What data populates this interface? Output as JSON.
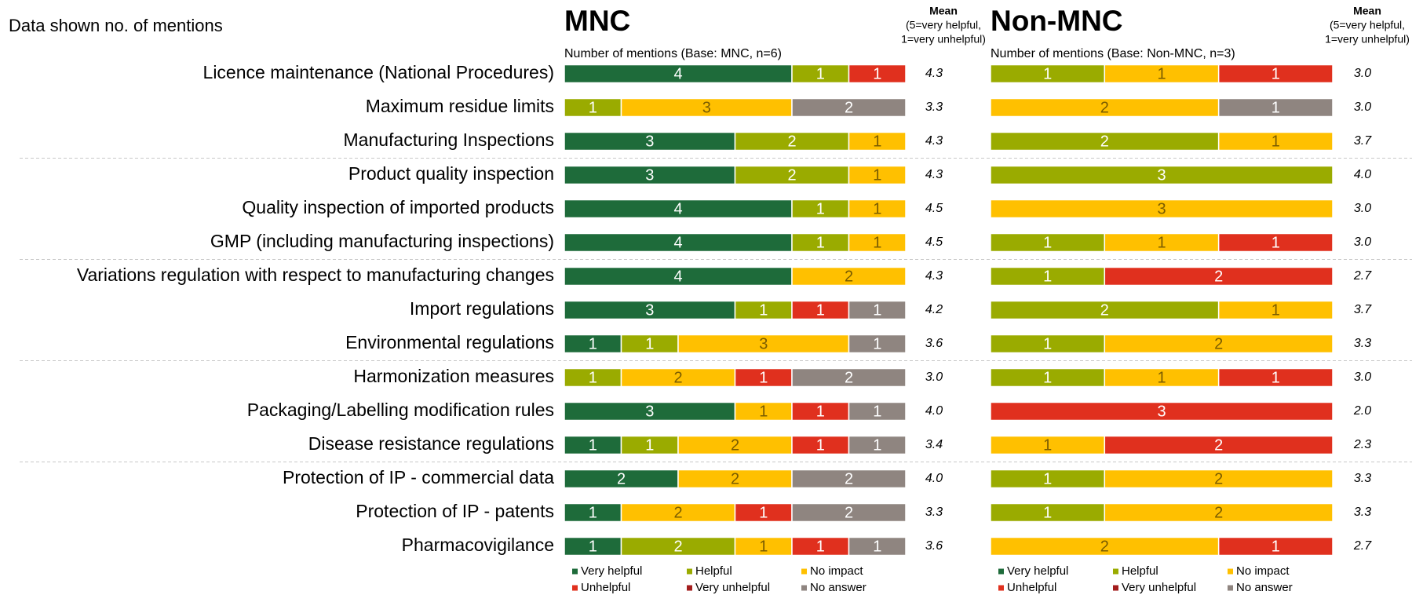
{
  "note": "Data shown no. of mentions",
  "chart_data": [
    {
      "type": "stacked-bar",
      "title": "MNC",
      "subtitle": "Number of mentions (Base: MNC, n=6)",
      "mean_label": [
        "Mean",
        "(5=very helpful,",
        "1=very unhelpful)"
      ],
      "categories": [
        "Licence maintenance (National Procedures)",
        "Maximum residue limits",
        "Manufacturing Inspections",
        "Product quality inspection",
        "Quality inspection of imported products",
        "GMP (including manufacturing inspections)",
        "Variations regulation with respect to manufacturing changes",
        "Import regulations",
        "Environmental regulations",
        "Harmonization measures",
        "Packaging/Labelling modification rules",
        "Disease resistance regulations",
        "Protection of IP - commercial data",
        "Protection of IP - patents",
        "Pharmacovigilance"
      ],
      "xlim": [
        0,
        6
      ],
      "series": [
        {
          "name": "Very helpful",
          "color": "#1e6b3a",
          "values": [
            4,
            null,
            3,
            3,
            4,
            4,
            4,
            3,
            1,
            null,
            3,
            1,
            2,
            1,
            1
          ]
        },
        {
          "name": "Helpful",
          "color": "#9aab00",
          "values": [
            1,
            1,
            2,
            2,
            1,
            1,
            null,
            1,
            1,
            1,
            null,
            1,
            null,
            null,
            2
          ]
        },
        {
          "name": "No impact",
          "color": "#ffc000",
          "values": [
            null,
            3,
            1,
            1,
            1,
            1,
            2,
            null,
            3,
            2,
            1,
            2,
            2,
            2,
            1
          ]
        },
        {
          "name": "Unhelpful",
          "color": "#e0301e",
          "values": [
            1,
            null,
            null,
            null,
            null,
            null,
            null,
            1,
            null,
            1,
            1,
            1,
            null,
            1,
            1
          ]
        },
        {
          "name": "Very unhelpful",
          "color": "#a31d1d",
          "values": [
            null,
            null,
            null,
            null,
            null,
            null,
            null,
            null,
            null,
            null,
            null,
            null,
            null,
            null,
            null
          ]
        },
        {
          "name": "No answer",
          "color": "#8f8580",
          "values": [
            null,
            2,
            null,
            null,
            null,
            null,
            null,
            1,
            1,
            2,
            1,
            1,
            2,
            2,
            1
          ]
        }
      ],
      "means": [
        4.3,
        3.3,
        4.3,
        4.3,
        4.5,
        4.5,
        4.3,
        4.2,
        3.6,
        3.0,
        4.0,
        3.4,
        4.0,
        3.3,
        3.6
      ],
      "mean_labels": [
        "4.3",
        "3.3",
        "4.3",
        "4.3",
        "4.5",
        "4.5",
        "4.3",
        "4.2",
        "3.6",
        "3.0",
        "4.0",
        "3.4",
        "4.0",
        "3.3",
        "3.6"
      ]
    },
    {
      "type": "stacked-bar",
      "title": "Non-MNC",
      "subtitle": "Number of mentions (Base: Non-MNC, n=3)",
      "mean_label": [
        "Mean",
        "(5=very helpful,",
        "1=very unhelpful)"
      ],
      "xlim": [
        0,
        3
      ],
      "series": [
        {
          "name": "Very helpful",
          "color": "#1e6b3a",
          "values": [
            null,
            null,
            null,
            null,
            null,
            null,
            null,
            null,
            null,
            null,
            null,
            null,
            null,
            null,
            null
          ]
        },
        {
          "name": "Helpful",
          "color": "#9aab00",
          "values": [
            1,
            null,
            2,
            3,
            null,
            1,
            1,
            2,
            1,
            1,
            null,
            null,
            1,
            1,
            null
          ]
        },
        {
          "name": "No impact",
          "color": "#ffc000",
          "values": [
            1,
            2,
            1,
            null,
            3,
            1,
            null,
            1,
            2,
            1,
            null,
            1,
            2,
            2,
            2
          ]
        },
        {
          "name": "Unhelpful",
          "color": "#e0301e",
          "values": [
            1,
            null,
            null,
            null,
            null,
            1,
            2,
            null,
            null,
            1,
            3,
            2,
            null,
            null,
            1
          ]
        },
        {
          "name": "Very unhelpful",
          "color": "#a31d1d",
          "values": [
            null,
            null,
            null,
            null,
            null,
            null,
            null,
            null,
            null,
            null,
            null,
            null,
            null,
            null,
            null
          ]
        },
        {
          "name": "No answer",
          "color": "#8f8580",
          "values": [
            null,
            1,
            null,
            null,
            null,
            null,
            null,
            null,
            null,
            null,
            null,
            null,
            null,
            null,
            null
          ]
        }
      ],
      "means": [
        3.0,
        3.0,
        3.7,
        4.0,
        3.0,
        3.0,
        2.7,
        3.7,
        3.3,
        3.0,
        2.0,
        2.3,
        3.3,
        3.3,
        2.7
      ],
      "mean_labels": [
        "3.0",
        "3.0",
        "3.7",
        "4.0",
        "3.0",
        "3.0",
        "2.7",
        "3.7",
        "3.3",
        "3.0",
        "2.0",
        "2.3",
        "3.3",
        "3.3",
        "2.7"
      ]
    }
  ]
}
